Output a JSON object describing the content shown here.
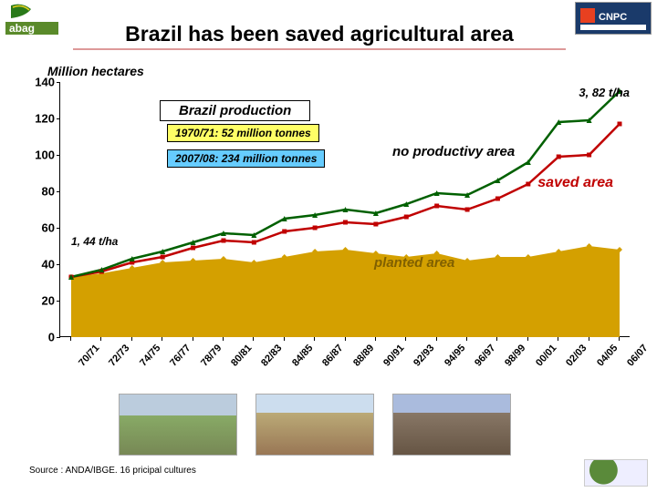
{
  "title": "Brazil  has been saved agricultural area",
  "subtitle": "Million hectares",
  "source": "Source : ANDA/IBGE. 16 pricipal cultures",
  "logos": {
    "left_text": "abag",
    "right_text": "CNPC"
  },
  "annotations": {
    "top_right": "3, 82 t/ha",
    "left_small": "1, 44 t/ha",
    "prod_title": "Brazil production",
    "box1": "1970/71: 52 million tonnes",
    "box2": "2007/08: 234 million tonnes",
    "no_prod": "no productivy area",
    "saved": "saved area",
    "planted": "planted area"
  },
  "colors": {
    "planted": "#d4a000",
    "saved_line": "#c00000",
    "total_line": "#006000",
    "box1_bg": "#ffff66",
    "box2_bg": "#66ccff",
    "prod_box_bg": "#ffffff",
    "saved_text": "#c00000",
    "planted_text": "#806000",
    "no_prod_text": "#000000",
    "annot_text": "#000000"
  },
  "chart": {
    "ylim": [
      0,
      140
    ],
    "ytick_step": 20,
    "yticks": [
      0,
      20,
      40,
      60,
      80,
      100,
      120,
      140
    ],
    "xlabels": [
      "70/71",
      "72/73",
      "74/75",
      "76/77",
      "78/79",
      "80/81",
      "82/83",
      "84/85",
      "86/87",
      "88/89",
      "90/91",
      "92/93",
      "94/95",
      "96/97",
      "98/99",
      "00/01",
      "02/03",
      "04/05",
      "06/07"
    ],
    "planted": [
      33,
      35,
      38,
      41,
      42,
      43,
      41,
      44,
      47,
      48,
      46,
      44,
      46,
      42,
      44,
      44,
      47,
      50,
      48
    ],
    "saved": [
      33,
      36,
      41,
      44,
      49,
      53,
      52,
      58,
      60,
      63,
      62,
      66,
      72,
      70,
      76,
      84,
      99,
      100,
      117
    ],
    "total": [
      33,
      37,
      43,
      47,
      52,
      57,
      56,
      65,
      67,
      70,
      68,
      73,
      79,
      78,
      86,
      96,
      118,
      119,
      135
    ]
  },
  "style": {
    "title_fontsize": 23,
    "axis_fontsize": 13,
    "xlabel_fontsize": 11,
    "box_fontsize": 12
  }
}
